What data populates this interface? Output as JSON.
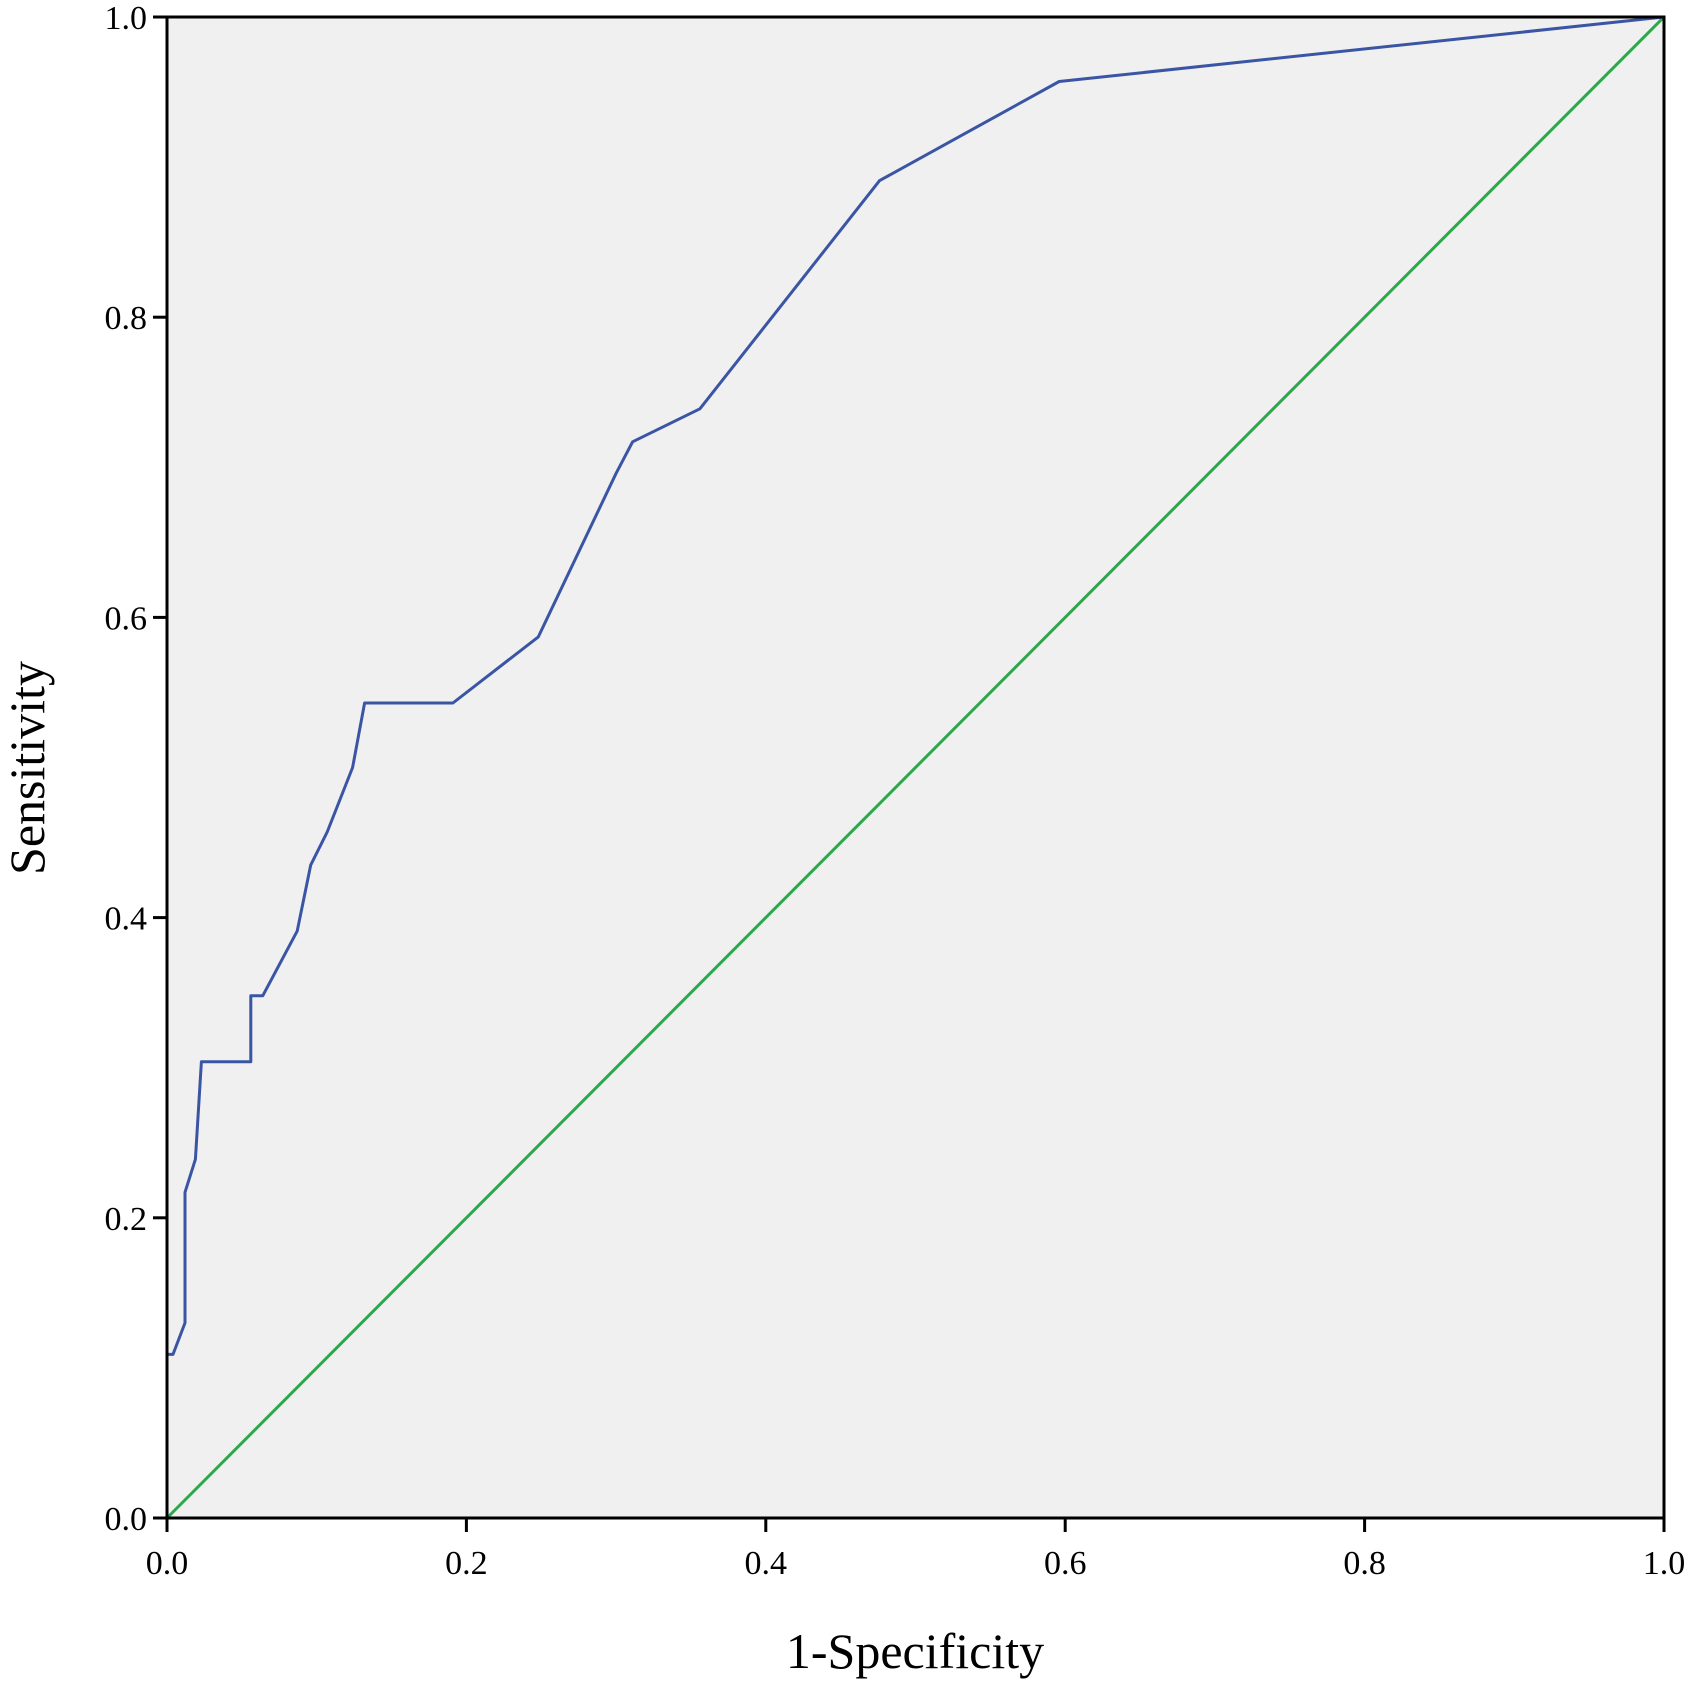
{
  "chart_data": {
    "type": "line",
    "title": "",
    "xlabel": "1-Specificity",
    "ylabel": "Sensitivity",
    "xlim": [
      0,
      1
    ],
    "ylim": [
      0,
      1
    ],
    "x_ticks": [
      "0.0",
      "0.2",
      "0.4",
      "0.6",
      "0.8",
      "1.0"
    ],
    "y_ticks": [
      "0.0",
      "0.2",
      "0.4",
      "0.6",
      "0.8",
      "1.0"
    ],
    "grid": false,
    "legend": "none",
    "plot_background": "#f0f0f0",
    "series": [
      {
        "color": "#3a55a4",
        "x": [
          0.0,
          0.0,
          0.004,
          0.012,
          0.012,
          0.019,
          0.023,
          0.056,
          0.056,
          0.064,
          0.087,
          0.096,
          0.107,
          0.124,
          0.132,
          0.191,
          0.248,
          0.3,
          0.311,
          0.356,
          0.476,
          0.596,
          1.0
        ],
        "y": [
          0.0,
          0.109,
          0.109,
          0.13,
          0.217,
          0.239,
          0.304,
          0.304,
          0.348,
          0.348,
          0.391,
          0.435,
          0.457,
          0.5,
          0.543,
          0.543,
          0.587,
          0.696,
          0.717,
          0.739,
          0.891,
          0.957,
          1.0
        ]
      },
      {
        "color": "#2ca84a",
        "x": [
          0,
          1
        ],
        "y": [
          0,
          1
        ]
      }
    ]
  }
}
